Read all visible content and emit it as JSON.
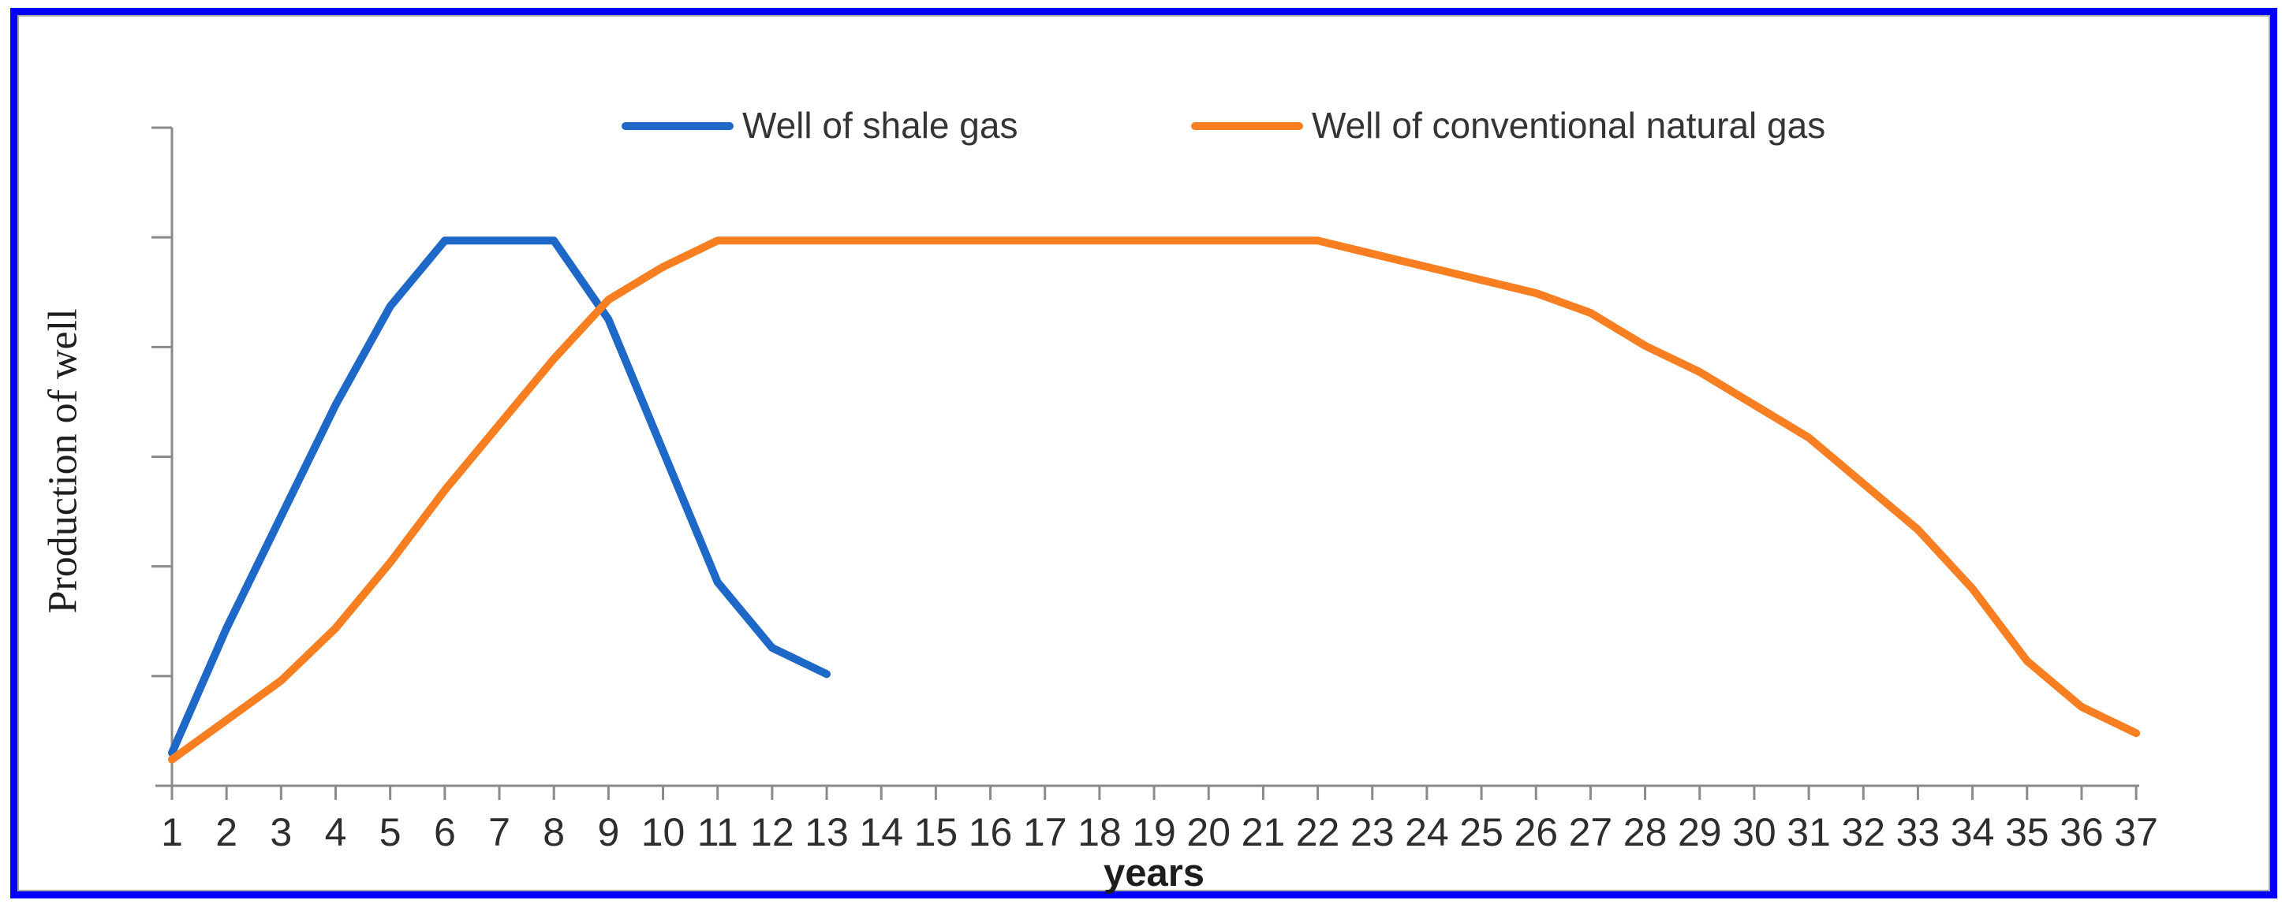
{
  "figure": {
    "border_color": "#0202FA",
    "inner_border_color": "#A6A6A6",
    "axis_color": "#8A8A8A",
    "tick_label_color": "#2E2E2E"
  },
  "legend": {
    "items": [
      {
        "label": "Well of shale gas",
        "color": "#1E68C8"
      },
      {
        "label": "Well of conventional natural gas",
        "color": "#F77F21"
      }
    ]
  },
  "axes": {
    "x_title": "years",
    "y_title": "Production of well"
  },
  "chart_data": {
    "type": "line",
    "title": "",
    "xlabel": "years",
    "ylabel": "Production of well",
    "x": [
      1,
      2,
      3,
      4,
      5,
      6,
      7,
      8,
      9,
      10,
      11,
      12,
      13,
      14,
      15,
      16,
      17,
      18,
      19,
      20,
      21,
      22,
      23,
      24,
      25,
      26,
      27,
      28,
      29,
      30,
      31,
      32,
      33,
      34,
      35,
      36,
      37
    ],
    "ylim": [
      0,
      100
    ],
    "y_axis": {
      "tick_count": 7,
      "tick_labels_shown": false
    },
    "grid": "off",
    "legend_position": "top-center",
    "series": [
      {
        "name": "Well of shale gas",
        "color": "#1E68C8",
        "values": [
          5,
          24,
          41,
          58,
          73,
          83,
          83,
          83,
          71,
          51,
          31,
          21,
          17
        ]
      },
      {
        "name": "Well of conventional natural gas",
        "color": "#F77F21",
        "values": [
          4,
          10,
          16,
          24,
          34,
          45,
          55,
          65,
          74,
          79,
          83,
          83,
          83,
          83,
          83,
          83,
          83,
          83,
          83,
          83,
          83,
          83,
          81,
          79,
          77,
          75,
          72,
          67,
          63,
          58,
          53,
          46,
          39,
          30,
          19,
          12,
          8
        ]
      }
    ]
  }
}
